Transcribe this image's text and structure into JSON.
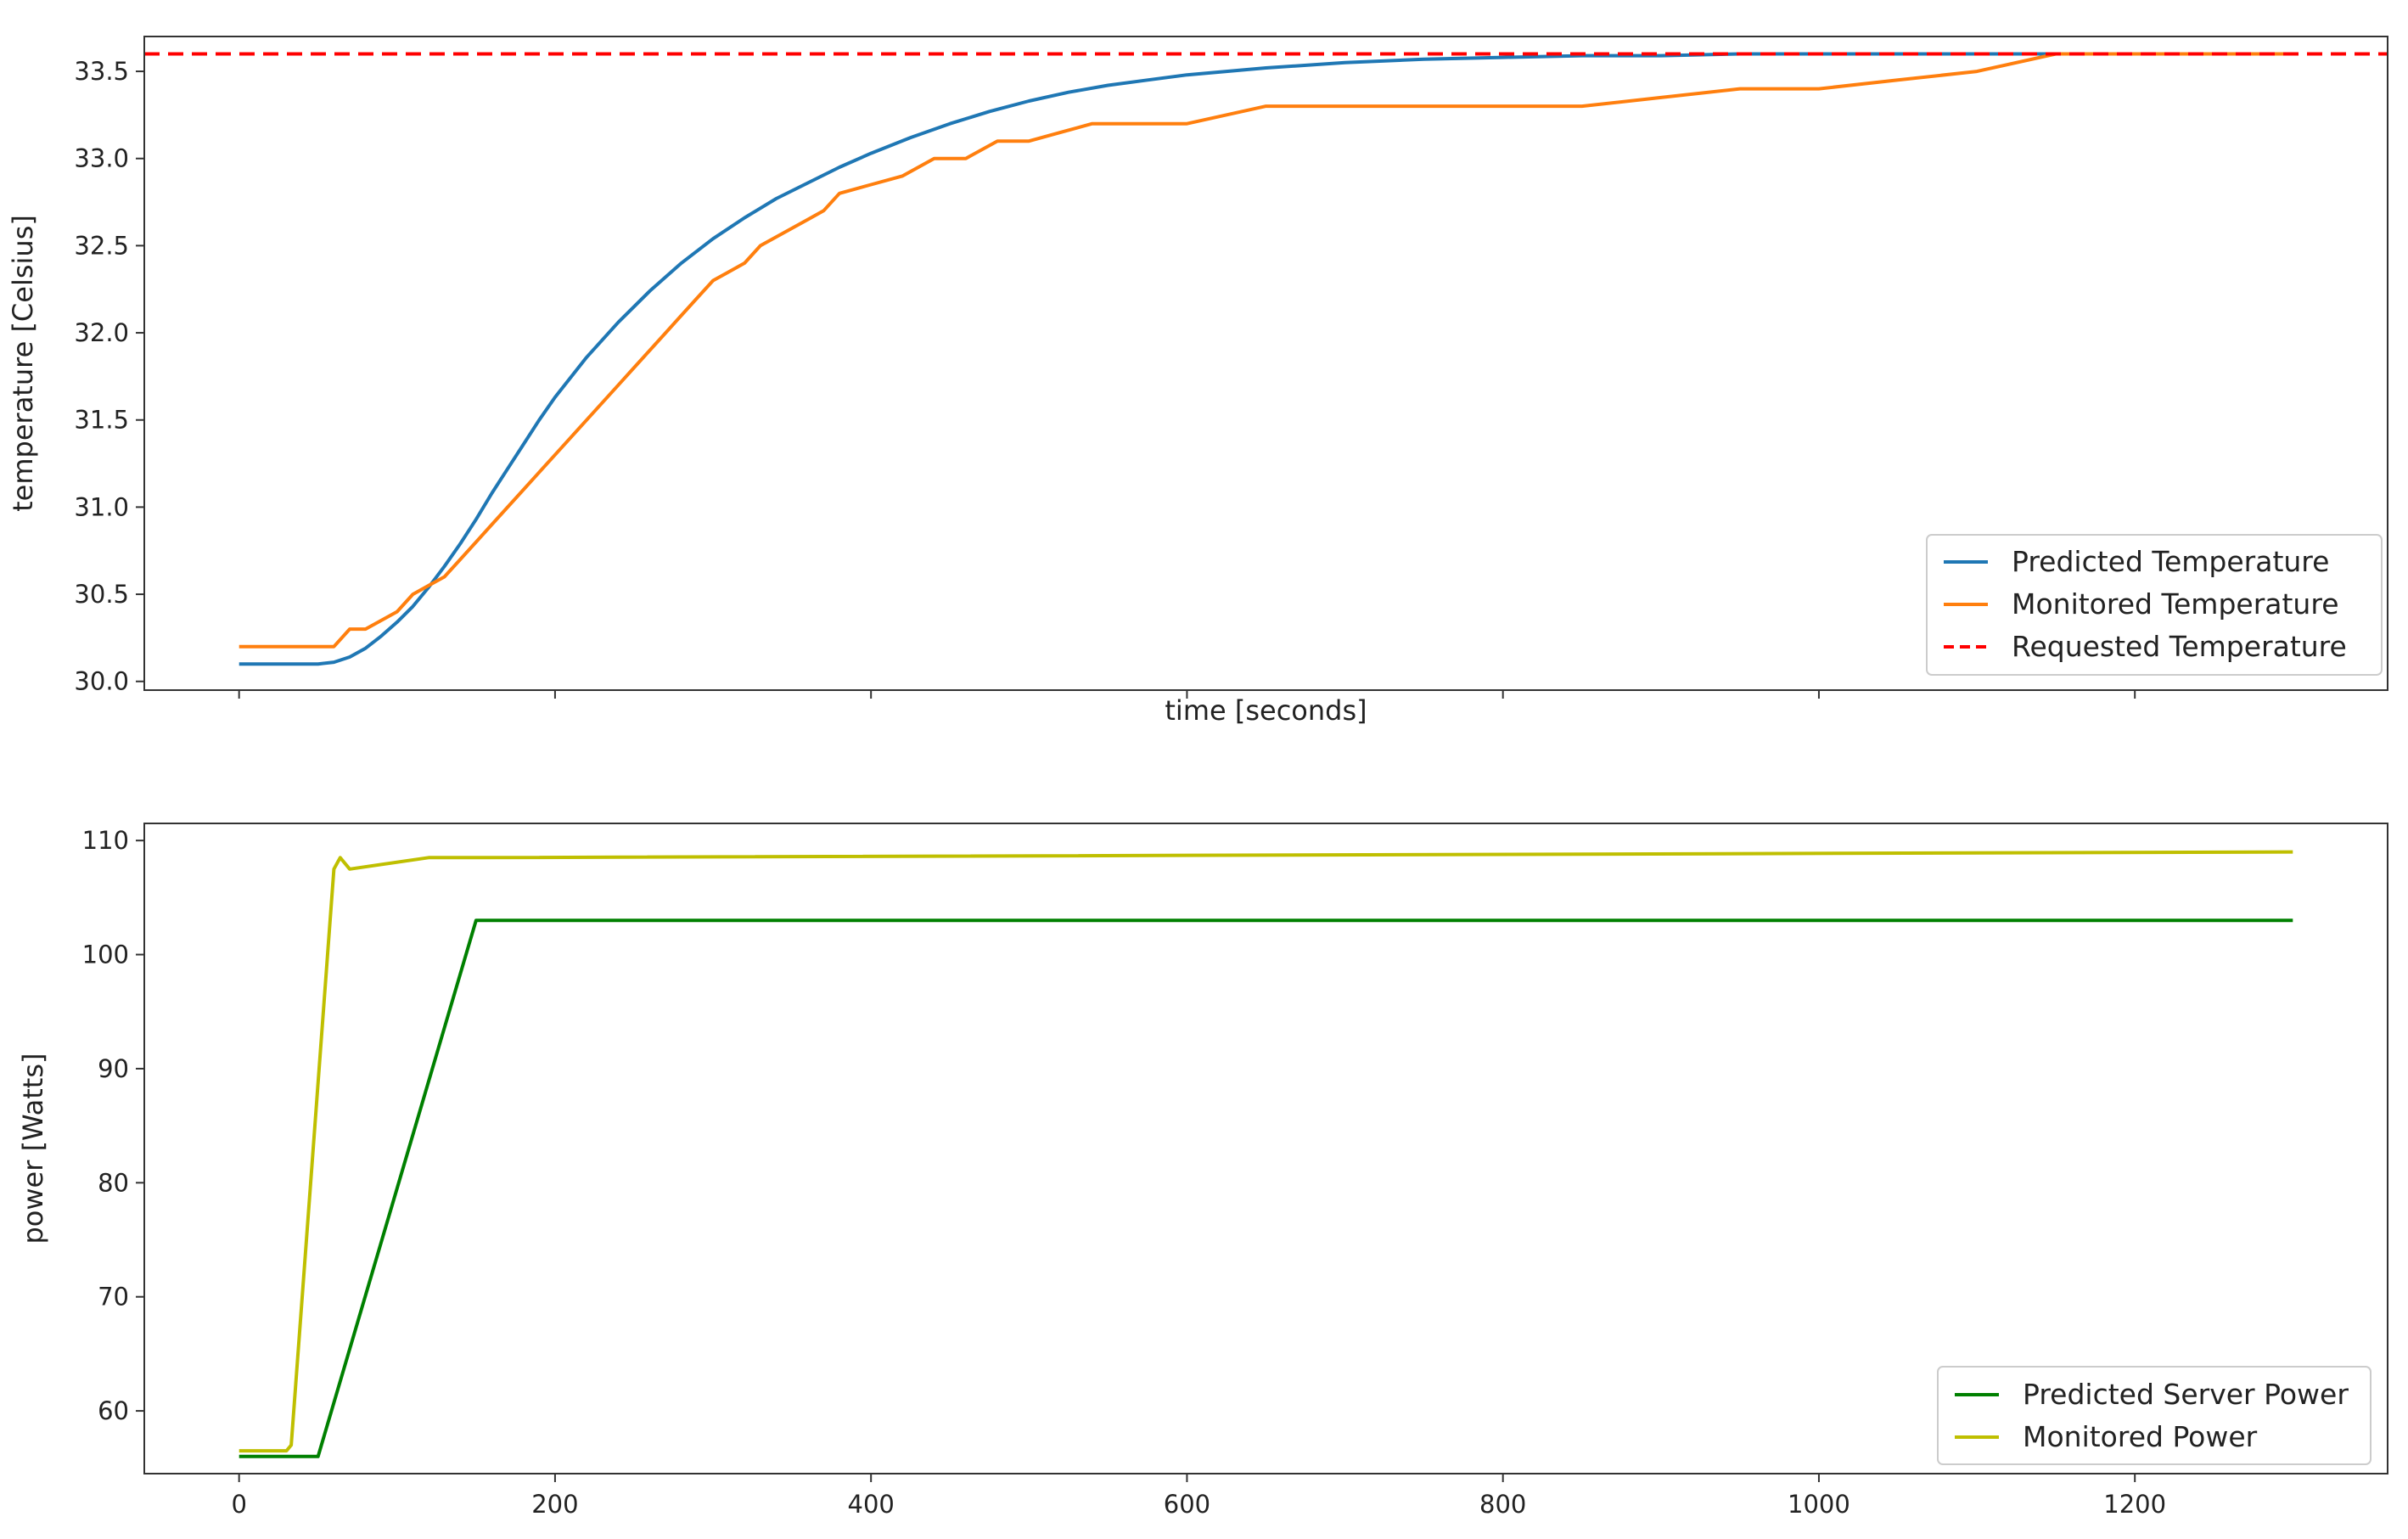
{
  "chart_data": [
    {
      "type": "line",
      "title": "",
      "xlabel": "time [seconds]",
      "ylabel": "temperature [Celsius]",
      "xlim": [
        -60,
        1360
      ],
      "ylim": [
        29.95,
        33.7
      ],
      "xticks": [
        0,
        200,
        400,
        600,
        800,
        1000,
        1200
      ],
      "show_x_tick_labels": false,
      "yticks": [
        30.0,
        30.5,
        31.0,
        31.5,
        32.0,
        32.5,
        33.0,
        33.5
      ],
      "ytick_labels": [
        "30.0",
        "30.5",
        "31.0",
        "31.5",
        "32.0",
        "32.5",
        "33.0",
        "33.5"
      ],
      "grid": false,
      "legend_position": "lower-right",
      "series": [
        {
          "name": "Predicted Temperature",
          "color": "#1f77b4",
          "style": "solid",
          "x": [
            0,
            50,
            60,
            70,
            80,
            90,
            100,
            110,
            120,
            130,
            140,
            150,
            160,
            170,
            180,
            190,
            200,
            220,
            240,
            260,
            280,
            300,
            320,
            340,
            360,
            380,
            400,
            425,
            450,
            475,
            500,
            525,
            550,
            575,
            600,
            650,
            700,
            750,
            800,
            850,
            900,
            950,
            1000,
            1100,
            1200,
            1300
          ],
          "y": [
            30.1,
            30.1,
            30.11,
            30.14,
            30.19,
            30.26,
            30.34,
            30.43,
            30.54,
            30.66,
            30.79,
            30.93,
            31.08,
            31.22,
            31.36,
            31.5,
            31.63,
            31.86,
            32.06,
            32.24,
            32.4,
            32.54,
            32.66,
            32.77,
            32.86,
            32.95,
            33.03,
            33.12,
            33.2,
            33.27,
            33.33,
            33.38,
            33.42,
            33.45,
            33.48,
            33.52,
            33.55,
            33.57,
            33.58,
            33.59,
            33.59,
            33.6,
            33.6,
            33.6,
            33.6,
            33.6
          ]
        },
        {
          "name": "Monitored Temperature",
          "color": "#ff7f0e",
          "style": "solid",
          "x": [
            0,
            60,
            70,
            80,
            90,
            100,
            110,
            120,
            130,
            140,
            150,
            160,
            170,
            180,
            190,
            200,
            210,
            220,
            230,
            240,
            250,
            260,
            270,
            280,
            290,
            300,
            310,
            320,
            330,
            340,
            350,
            360,
            370,
            380,
            400,
            420,
            440,
            460,
            480,
            500,
            520,
            540,
            560,
            580,
            600,
            650,
            700,
            750,
            800,
            850,
            900,
            950,
            1000,
            1050,
            1100,
            1150,
            1200,
            1250,
            1300
          ],
          "y": [
            30.2,
            30.2,
            30.3,
            30.3,
            30.35,
            30.4,
            30.5,
            30.55,
            30.6,
            30.7,
            30.8,
            30.9,
            31.0,
            31.1,
            31.2,
            31.3,
            31.4,
            31.5,
            31.6,
            31.7,
            31.8,
            31.9,
            32.0,
            32.1,
            32.2,
            32.3,
            32.35,
            32.4,
            32.5,
            32.55,
            32.6,
            32.65,
            32.7,
            32.8,
            32.85,
            32.9,
            33.0,
            33.0,
            33.1,
            33.1,
            33.15,
            33.2,
            33.2,
            33.2,
            33.2,
            33.3,
            33.3,
            33.3,
            33.3,
            33.3,
            33.35,
            33.4,
            33.4,
            33.45,
            33.5,
            33.6,
            33.6,
            33.6,
            33.6
          ]
        },
        {
          "name": "Requested Temperature",
          "color": "#ff0000",
          "style": "dashed",
          "x": [
            -60,
            1360
          ],
          "y": [
            33.6,
            33.6
          ]
        }
      ]
    },
    {
      "type": "line",
      "title": "",
      "xlabel": "",
      "ylabel": "power [Watts]",
      "xlim": [
        -60,
        1360
      ],
      "ylim": [
        54.5,
        111.5
      ],
      "xticks": [
        0,
        200,
        400,
        600,
        800,
        1000,
        1200
      ],
      "xtick_labels": [
        "0",
        "200",
        "400",
        "600",
        "800",
        "1000",
        "1200"
      ],
      "yticks": [
        60,
        70,
        80,
        90,
        100,
        110
      ],
      "ytick_labels": [
        "60",
        "70",
        "80",
        "90",
        "100",
        "110"
      ],
      "grid": false,
      "legend_position": "lower-right",
      "series": [
        {
          "name": "Predicted Server Power",
          "color": "#008000",
          "style": "solid",
          "x": [
            0,
            50,
            150,
            1300
          ],
          "y": [
            56,
            56,
            103,
            103
          ]
        },
        {
          "name": "Monitored Power",
          "color": "#bfbf00",
          "style": "solid",
          "x": [
            0,
            30,
            33,
            60,
            64,
            70,
            120,
            150,
            1300
          ],
          "y": [
            56.5,
            56.5,
            57,
            107.5,
            108.5,
            107.5,
            108.5,
            108.5,
            109
          ]
        }
      ]
    }
  ]
}
